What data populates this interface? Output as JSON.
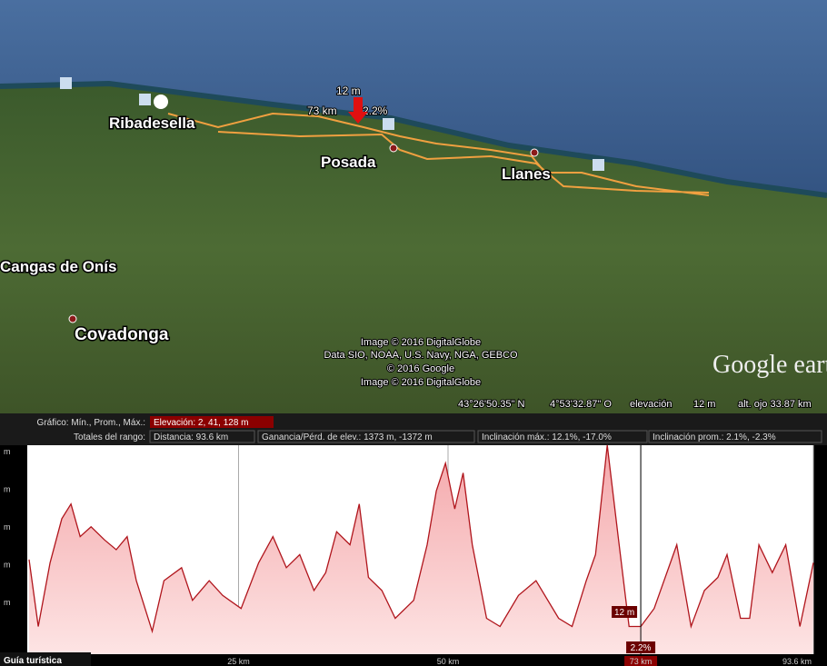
{
  "map": {
    "places": [
      "Ribadesella",
      "Posada",
      "Llanes",
      "Cangas de Onís",
      "Covadonga"
    ],
    "cursor": {
      "elevation": "12 m",
      "distance": "73 km",
      "slope": "2.2%"
    },
    "attribution": [
      "Image © 2016 DigitalGlobe",
      "Data SIO, NOAA, U.S. Navy, NGA, GEBCO",
      "© 2016 Google",
      "Image © 2016 DigitalGlobe"
    ],
    "logo": "Google earth",
    "status": {
      "lat": "43°26'50.35\" N",
      "lon": "4°53'32.87\" O",
      "elevation_label": "elevación",
      "elevation": "12 m",
      "eye_alt": "alt. ojo 33.87 km"
    }
  },
  "profile_header": {
    "graph_label": "Gráfico: Mín., Prom., Máx.:",
    "elevation": "Elevación: 2, 41, 128 m",
    "range_label": "Totales del rango:",
    "distance": "Distancia: 93.6 km",
    "gain_loss": "Ganancia/Pérd. de elev.: 1373 m, -1372 m",
    "max_slope": "Inclinación máx.: 12.1%, -17.0%",
    "avg_slope": "Inclinación prom.: 2.1%, -2.3%"
  },
  "chart_data": {
    "type": "area",
    "x": [
      0,
      1.1,
      2.5,
      3.9,
      5.0,
      6.1,
      7.4,
      9.0,
      10.4,
      11.7,
      12.8,
      14.7,
      16.1,
      18.2,
      19.5,
      21.5,
      23.1,
      25.3,
      27.4,
      29.1,
      30.7,
      32.3,
      34.0,
      35.4,
      36.7,
      38.3,
      39.4,
      40.5,
      42.1,
      43.7,
      45.9,
      47.5,
      48.6,
      49.7,
      50.8,
      51.8,
      52.9,
      54.6,
      56.2,
      58.4,
      60.5,
      63.2,
      64.8,
      66.5,
      67.6,
      69.0,
      70.3,
      71.6,
      73.0,
      74.6,
      77.3,
      79.0,
      80.6,
      82.2,
      83.3,
      84.9,
      86.0,
      87.1,
      88.7,
      90.3,
      92.0,
      93.6
    ],
    "values": [
      58,
      17,
      56,
      83,
      92,
      72,
      78,
      70,
      64,
      72,
      45,
      14,
      45,
      53,
      33,
      45,
      36,
      28,
      56,
      72,
      53,
      61,
      39,
      50,
      75,
      67,
      92,
      47,
      39,
      22,
      33,
      67,
      100,
      117,
      89,
      111,
      67,
      22,
      17,
      36,
      45,
      22,
      17,
      45,
      61,
      128,
      72,
      17,
      17,
      28,
      67,
      17,
      39,
      47,
      61,
      22,
      22,
      67,
      50,
      67,
      17,
      56
    ],
    "xlim": [
      0,
      93.6
    ],
    "ylim": [
      0,
      128
    ],
    "xticks": [
      {
        "value": 25,
        "label": "25 km"
      },
      {
        "value": 50,
        "label": "50 km"
      },
      {
        "value": 73,
        "label": "73 km"
      },
      {
        "value": 93.6,
        "label": "93.6 km"
      }
    ],
    "y_unit_labels": [
      "m",
      "m",
      "m",
      "m",
      "m"
    ],
    "annotations": [
      "12 m",
      "2.2%"
    ],
    "cursor_x": 73,
    "color": "#b0151c"
  },
  "footer": {
    "tab": "Guía turística"
  }
}
